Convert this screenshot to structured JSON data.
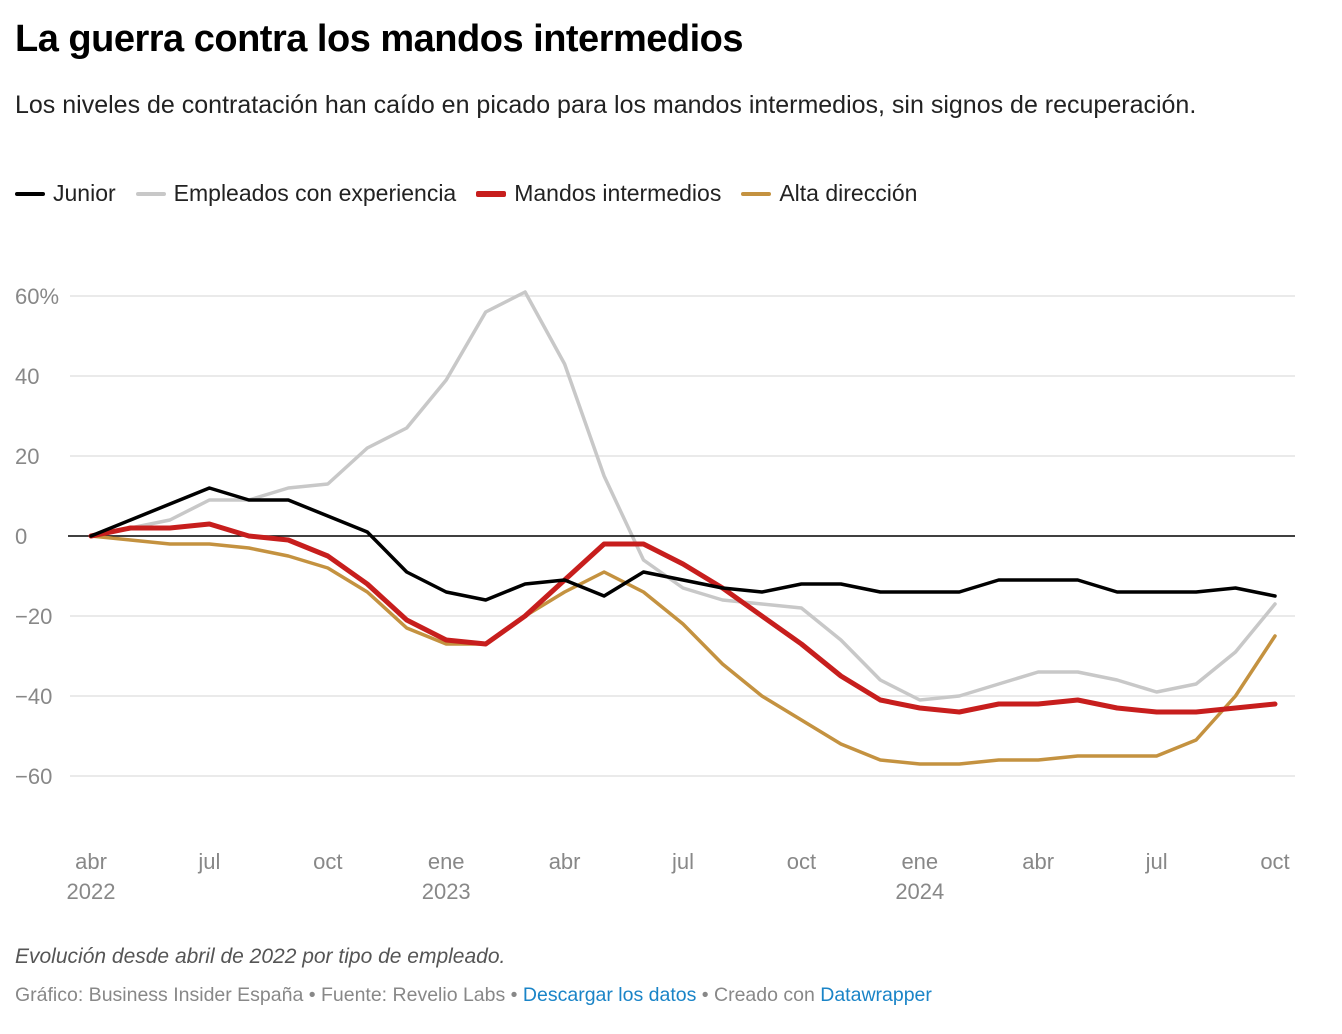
{
  "chart_data": {
    "type": "line",
    "title": "La guerra contra los mandos intermedios",
    "subtitle": "Los niveles de contratación han caído en picado para los mandos intermedios, sin signos de recuperación.",
    "xlabel": "",
    "ylabel": "",
    "x_start": "2022-04",
    "x_end": "2024-10",
    "x_unit": "month",
    "ylim": [
      -75,
      65
    ],
    "y_ticks": [
      {
        "v": 60,
        "label": "60%"
      },
      {
        "v": 40,
        "label": "40"
      },
      {
        "v": 20,
        "label": "20"
      },
      {
        "v": 0,
        "label": "0"
      },
      {
        "v": -20,
        "label": "−20"
      },
      {
        "v": -40,
        "label": "−40"
      },
      {
        "v": -60,
        "label": "−60"
      }
    ],
    "x_ticks": [
      {
        "i": 0,
        "label": "abr",
        "year": "2022"
      },
      {
        "i": 3,
        "label": "jul"
      },
      {
        "i": 6,
        "label": "oct"
      },
      {
        "i": 9,
        "label": "ene",
        "year": "2023"
      },
      {
        "i": 12,
        "label": "abr"
      },
      {
        "i": 15,
        "label": "jul"
      },
      {
        "i": 18,
        "label": "oct"
      },
      {
        "i": 21,
        "label": "ene",
        "year": "2024"
      },
      {
        "i": 24,
        "label": "abr"
      },
      {
        "i": 27,
        "label": "jul"
      },
      {
        "i": 30,
        "label": "oct"
      }
    ],
    "grid": true,
    "legend_position": "top-left",
    "series": [
      {
        "name": "Empleados con experiencia",
        "color": "#c8c8c8",
        "width": 3.5,
        "values": [
          0,
          2,
          4,
          9,
          9,
          12,
          13,
          22,
          27,
          39,
          56,
          61,
          43,
          15,
          -6,
          -13,
          -16,
          -17,
          -18,
          -26,
          -36,
          -41,
          -40,
          -37,
          -34,
          -34,
          -36,
          -39,
          -37,
          -29,
          -17
        ]
      },
      {
        "name": "Alta dirección",
        "color": "#c49240",
        "width": 3.5,
        "values": [
          0,
          -1,
          -2,
          -2,
          -3,
          -5,
          -8,
          -14,
          -23,
          -27,
          -27,
          -20,
          -14,
          -9,
          -14,
          -22,
          -32,
          -40,
          -46,
          -52,
          -56,
          -57,
          -57,
          -56,
          -56,
          -55,
          -55,
          -55,
          -51,
          -40,
          -25
        ]
      },
      {
        "name": "Mandos intermedios",
        "color": "#c71e1d",
        "width": 5,
        "values": [
          0,
          2,
          2,
          3,
          0,
          -1,
          -5,
          -12,
          -21,
          -26,
          -27,
          -20,
          -11,
          -2,
          -2,
          -7,
          -13,
          -20,
          -27,
          -35,
          -41,
          -43,
          -44,
          -42,
          -42,
          -41,
          -43,
          -44,
          -44,
          -43,
          -42
        ]
      },
      {
        "name": "Junior",
        "color": "#000000",
        "width": 3.5,
        "values": [
          0,
          4,
          8,
          12,
          9,
          9,
          5,
          1,
          -9,
          -14,
          -16,
          -12,
          -11,
          -15,
          -9,
          -11,
          -13,
          -14,
          -12,
          -12,
          -14,
          -14,
          -14,
          -11,
          -11,
          -11,
          -14,
          -14,
          -14,
          -13,
          -15
        ]
      }
    ]
  },
  "legend": [
    {
      "name": "Junior",
      "color": "#000000"
    },
    {
      "name": "Empleados con experiencia",
      "color": "#c8c8c8"
    },
    {
      "name": "Mandos intermedios",
      "color": "#c71e1d"
    },
    {
      "name": "Alta dirección",
      "color": "#c49240"
    }
  ],
  "note": "Evolución desde abril de 2022 por tipo de empleado.",
  "footer": {
    "prefix": "Gráfico: Business Insider España • Fuente: Revelio Labs • ",
    "download": "Descargar los datos",
    "middle": " • Creado con ",
    "dw": "Datawrapper"
  }
}
